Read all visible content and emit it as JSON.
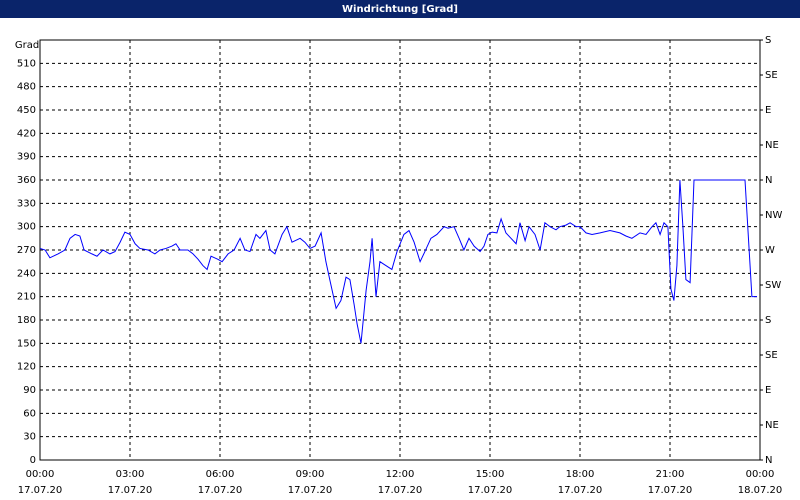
{
  "chart_data": {
    "type": "line",
    "title": "Windrichtung [Grad]",
    "y_label": "Grad",
    "x": [
      0,
      0.17,
      0.33,
      0.6,
      0.83,
      1,
      1.17,
      1.33,
      1.47,
      1.73,
      1.9,
      2.1,
      2.33,
      2.5,
      2.67,
      2.83,
      3,
      3.17,
      3.33,
      3.6,
      3.83,
      4,
      4.2,
      4.4,
      4.53,
      4.67,
      4.93,
      5.1,
      5.27,
      5.43,
      5.57,
      5.7,
      5.93,
      6.07,
      6.27,
      6.47,
      6.67,
      6.83,
      7,
      7.2,
      7.33,
      7.53,
      7.67,
      7.83,
      8.07,
      8.23,
      8.4,
      8.67,
      8.83,
      9,
      9.17,
      9.37,
      9.53,
      9.67,
      9.87,
      10.03,
      10.2,
      10.33,
      10.47,
      10.57,
      10.7,
      10.87,
      11,
      11.07,
      11.2,
      11.33,
      11.53,
      11.73,
      11.9,
      12.13,
      12.3,
      12.47,
      12.67,
      12.83,
      13.03,
      13.23,
      13.47,
      13.6,
      13.8,
      13.97,
      14.13,
      14.3,
      14.47,
      14.67,
      14.8,
      14.93,
      15.07,
      15.23,
      15.37,
      15.53,
      15.7,
      15.87,
      16,
      16.17,
      16.3,
      16.5,
      16.67,
      16.83,
      17,
      17.2,
      17.33,
      17.53,
      17.67,
      17.87,
      18,
      18.2,
      18.4,
      18.67,
      19,
      19.33,
      19.53,
      19.73,
      20,
      20.2,
      20.4,
      20.53,
      20.67,
      20.8,
      20.93,
      21.03,
      21.13,
      21.23,
      21.33,
      21.43,
      21.53,
      21.67,
      21.8,
      22,
      22.33,
      22.67,
      23,
      23.5,
      23.73,
      23.9
    ],
    "series": [
      {
        "name": "Windrichtung",
        "color": "#0000ff",
        "values": [
          272,
          270,
          260,
          265,
          270,
          285,
          290,
          288,
          270,
          265,
          262,
          270,
          265,
          268,
          280,
          293,
          290,
          278,
          272,
          270,
          265,
          270,
          272,
          275,
          278,
          270,
          270,
          265,
          258,
          250,
          245,
          262,
          258,
          255,
          265,
          270,
          285,
          270,
          268,
          290,
          285,
          295,
          270,
          265,
          290,
          300,
          280,
          285,
          280,
          272,
          275,
          292,
          255,
          230,
          195,
          205,
          235,
          232,
          200,
          175,
          150,
          218,
          255,
          285,
          210,
          255,
          250,
          245,
          268,
          290,
          295,
          280,
          255,
          268,
          285,
          290,
          300,
          298,
          300,
          285,
          270,
          285,
          275,
          268,
          275,
          290,
          293,
          292,
          310,
          292,
          285,
          278,
          305,
          282,
          300,
          290,
          270,
          305,
          300,
          296,
          300,
          302,
          305,
          300,
          300,
          292,
          290,
          292,
          295,
          292,
          288,
          285,
          292,
          290,
          300,
          305,
          290,
          305,
          300,
          220,
          205,
          250,
          360,
          300,
          232,
          228,
          360,
          360,
          360,
          360,
          360,
          360,
          210,
          210
        ]
      }
    ],
    "xlim": [
      0,
      24
    ],
    "xticks": [
      {
        "value": 0,
        "label": "00:00"
      },
      {
        "value": 3,
        "label": "03:00"
      },
      {
        "value": 6,
        "label": "06:00"
      },
      {
        "value": 9,
        "label": "09:00"
      },
      {
        "value": 12,
        "label": "12:00"
      },
      {
        "value": 15,
        "label": "15:00"
      },
      {
        "value": 18,
        "label": "18:00"
      },
      {
        "value": 21,
        "label": "21:00"
      },
      {
        "value": 24,
        "label": "00:00"
      }
    ],
    "xtick_dates": [
      "17.07.20",
      "17.07.20",
      "17.07.20",
      "17.07.20",
      "17.07.20",
      "17.07.20",
      "17.07.20",
      "17.07.20",
      "18.07.20"
    ],
    "ylim": [
      0,
      540
    ],
    "yticks": [
      0,
      30,
      60,
      90,
      120,
      150,
      180,
      210,
      240,
      270,
      300,
      330,
      360,
      390,
      420,
      450,
      480,
      510
    ],
    "y2lim": [
      0,
      540
    ],
    "y2ticks": [
      {
        "value": 0,
        "label": "N"
      },
      {
        "value": 45,
        "label": "NE"
      },
      {
        "value": 90,
        "label": "E"
      },
      {
        "value": 135,
        "label": "SE"
      },
      {
        "value": 180,
        "label": "S"
      },
      {
        "value": 225,
        "label": "SW"
      },
      {
        "value": 270,
        "label": "W"
      },
      {
        "value": 315,
        "label": "NW"
      },
      {
        "value": 360,
        "label": "N"
      },
      {
        "value": 405,
        "label": "NE"
      },
      {
        "value": 450,
        "label": "E"
      },
      {
        "value": 495,
        "label": "SE"
      },
      {
        "value": 540,
        "label": "S"
      }
    ],
    "grid": true
  }
}
